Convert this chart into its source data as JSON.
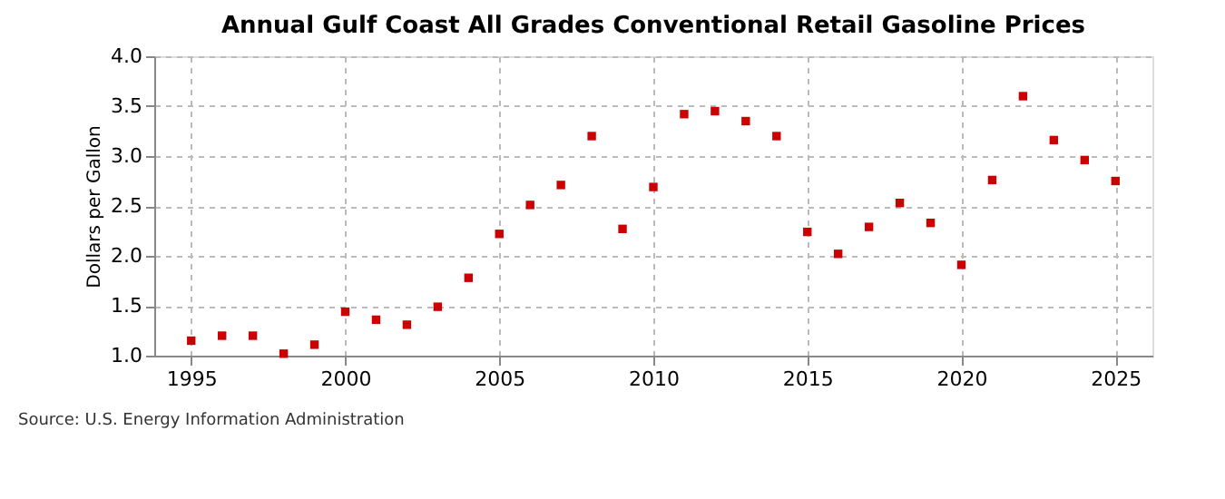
{
  "chart_data": {
    "type": "scatter",
    "title": "Annual Gulf Coast All Grades Conventional Retail Gasoline Prices",
    "ylabel": "Dollars per Gallon",
    "x": [
      1995,
      1996,
      1997,
      1998,
      1999,
      2000,
      2001,
      2002,
      2003,
      2004,
      2005,
      2006,
      2007,
      2008,
      2009,
      2010,
      2011,
      2012,
      2013,
      2014,
      2015,
      2016,
      2017,
      2018,
      2019,
      2020,
      2021,
      2022,
      2023,
      2024,
      2025
    ],
    "series": [
      {
        "color": "#cc0000",
        "values": [
          1.15,
          1.2,
          1.2,
          1.02,
          1.11,
          1.44,
          1.36,
          1.31,
          1.49,
          1.78,
          2.22,
          2.51,
          2.71,
          3.2,
          2.27,
          2.69,
          3.42,
          3.45,
          3.35,
          3.2,
          2.24,
          2.02,
          2.29,
          2.53,
          2.33,
          1.91,
          2.76,
          3.6,
          3.16,
          2.96,
          2.75
        ]
      }
    ],
    "xlim": [
      1993.8,
      2026.2
    ],
    "xticks": [
      1995,
      2000,
      2005,
      2010,
      2015,
      2020,
      2025
    ],
    "ylim": [
      1.0,
      4.0
    ],
    "yticks": [
      {
        "value": 1,
        "label": "1.0"
      },
      {
        "value": 1.5,
        "label": "1.5"
      },
      {
        "value": 2,
        "label": "2.0"
      },
      {
        "value": 2.5,
        "label": "2.5"
      },
      {
        "value": 3,
        "label": "3.0"
      },
      {
        "value": 3.5,
        "label": "3.5"
      },
      {
        "value": 4,
        "label": "4.0"
      }
    ],
    "grid": true,
    "marker": "square",
    "annotations": [
      "Source: U.S. Energy Information Administration"
    ]
  }
}
